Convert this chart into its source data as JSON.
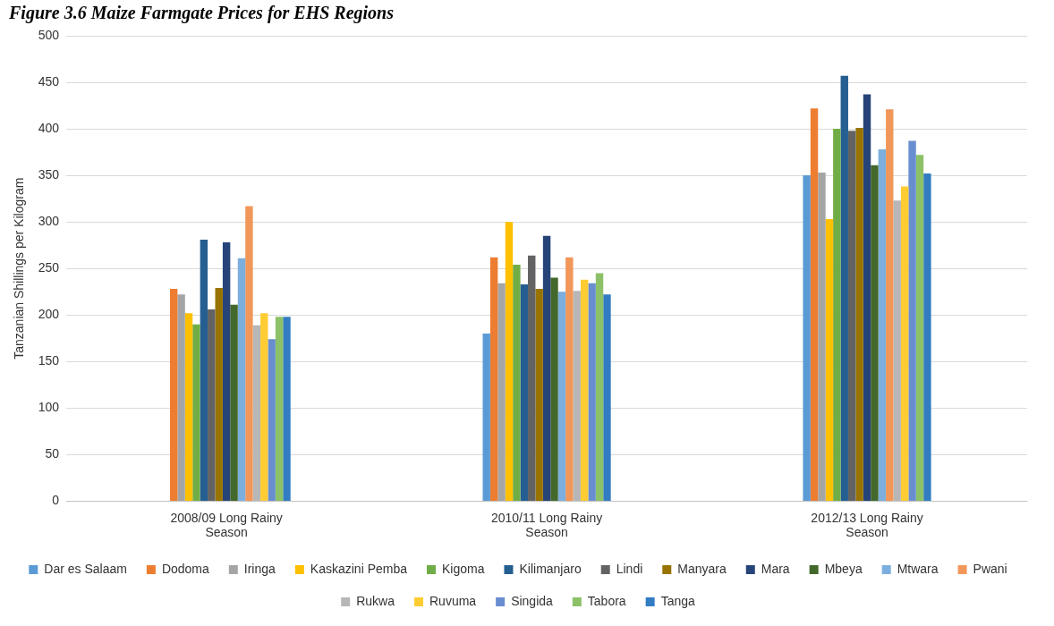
{
  "chart_data": {
    "type": "bar",
    "title": "Figure 3.6 Maize Farmgate Prices for EHS Regions",
    "ylabel": "Tanzanian Shillings per Kilogram",
    "categories": [
      "2008/09 Long Rainy Season",
      "2010/11 Long Rainy Season",
      "2012/13 Long Rainy Season"
    ],
    "ylim": [
      0,
      500
    ],
    "yticks": [
      0,
      50,
      100,
      150,
      200,
      250,
      300,
      350,
      400,
      450,
      500
    ],
    "grid": "y",
    "legend": "bottom",
    "series": [
      {
        "name": "Dar es Salaam",
        "color": "#5b9bd5",
        "values": [
          null,
          180,
          350
        ]
      },
      {
        "name": "Dodoma",
        "color": "#ed7d31",
        "values": [
          228,
          262,
          422
        ]
      },
      {
        "name": "Iringa",
        "color": "#a5a5a5",
        "values": [
          222,
          234,
          353
        ]
      },
      {
        "name": "Kaskazini Pemba",
        "color": "#ffc000",
        "values": [
          202,
          300,
          303
        ]
      },
      {
        "name": "Kigoma",
        "color": "#70ad47",
        "values": [
          190,
          254,
          400
        ]
      },
      {
        "name": "Kilimanjaro",
        "color": "#255e91",
        "values": [
          281,
          233,
          457
        ]
      },
      {
        "name": "Lindi",
        "color": "#636363",
        "values": [
          206,
          264,
          398
        ]
      },
      {
        "name": "Manyara",
        "color": "#997300",
        "values": [
          229,
          228,
          401
        ]
      },
      {
        "name": "Mara",
        "color": "#264478",
        "values": [
          278,
          285,
          437
        ]
      },
      {
        "name": "Mbeya",
        "color": "#43682b",
        "values": [
          211,
          240,
          361
        ]
      },
      {
        "name": "Mtwara",
        "color": "#7cafdd",
        "values": [
          261,
          225,
          378
        ]
      },
      {
        "name": "Pwani",
        "color": "#f1975a",
        "values": [
          317,
          262,
          421
        ]
      },
      {
        "name": "Rukwa",
        "color": "#b7b7b7",
        "values": [
          189,
          226,
          323
        ]
      },
      {
        "name": "Ruvuma",
        "color": "#ffcd33",
        "values": [
          202,
          238,
          338
        ]
      },
      {
        "name": "Singida",
        "color": "#698ed0",
        "values": [
          174,
          234,
          387
        ]
      },
      {
        "name": "Tabora",
        "color": "#8cc168",
        "values": [
          198,
          245,
          372
        ]
      },
      {
        "name": "Tanga",
        "color": "#327dc2",
        "values": [
          198,
          222,
          352
        ]
      }
    ]
  }
}
